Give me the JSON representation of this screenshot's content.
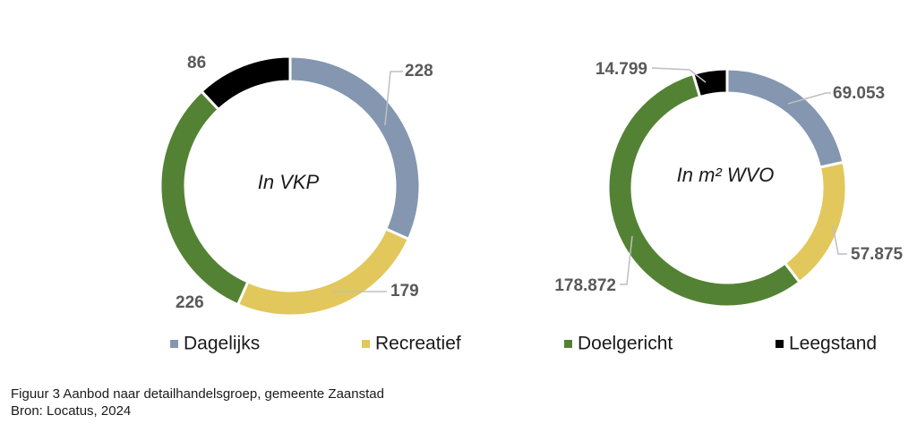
{
  "chart_data": [
    {
      "type": "pie",
      "variant": "donut",
      "center_label": "In VKP",
      "categories": [
        "Dagelijks",
        "Recreatief",
        "Doelgericht",
        "Leegstand"
      ],
      "values": [
        228,
        179,
        226,
        86
      ],
      "value_labels": [
        "228",
        "179",
        "226",
        "86"
      ]
    },
    {
      "type": "pie",
      "variant": "donut",
      "center_label": "In m² WVO",
      "categories": [
        "Dagelijks",
        "Recreatief",
        "Doelgericht",
        "Leegstand"
      ],
      "values": [
        69053,
        57875,
        178872,
        14799
      ],
      "value_labels": [
        "69.053",
        "57.875",
        "178.872",
        "14.799"
      ]
    }
  ],
  "legend": {
    "placement": "bottom",
    "items": [
      {
        "label": "Dagelijks",
        "color": "#8496b0"
      },
      {
        "label": "Recreatief",
        "color": "#e2c75c"
      },
      {
        "label": "Doelgericht",
        "color": "#548235"
      },
      {
        "label": "Leegstand",
        "color": "#000000"
      }
    ]
  },
  "caption": {
    "line1": "Figuur 3 Aanbod naar detailhandelsgroep, gemeente Zaanstad",
    "line2": "Bron: Locatus, 2024"
  }
}
